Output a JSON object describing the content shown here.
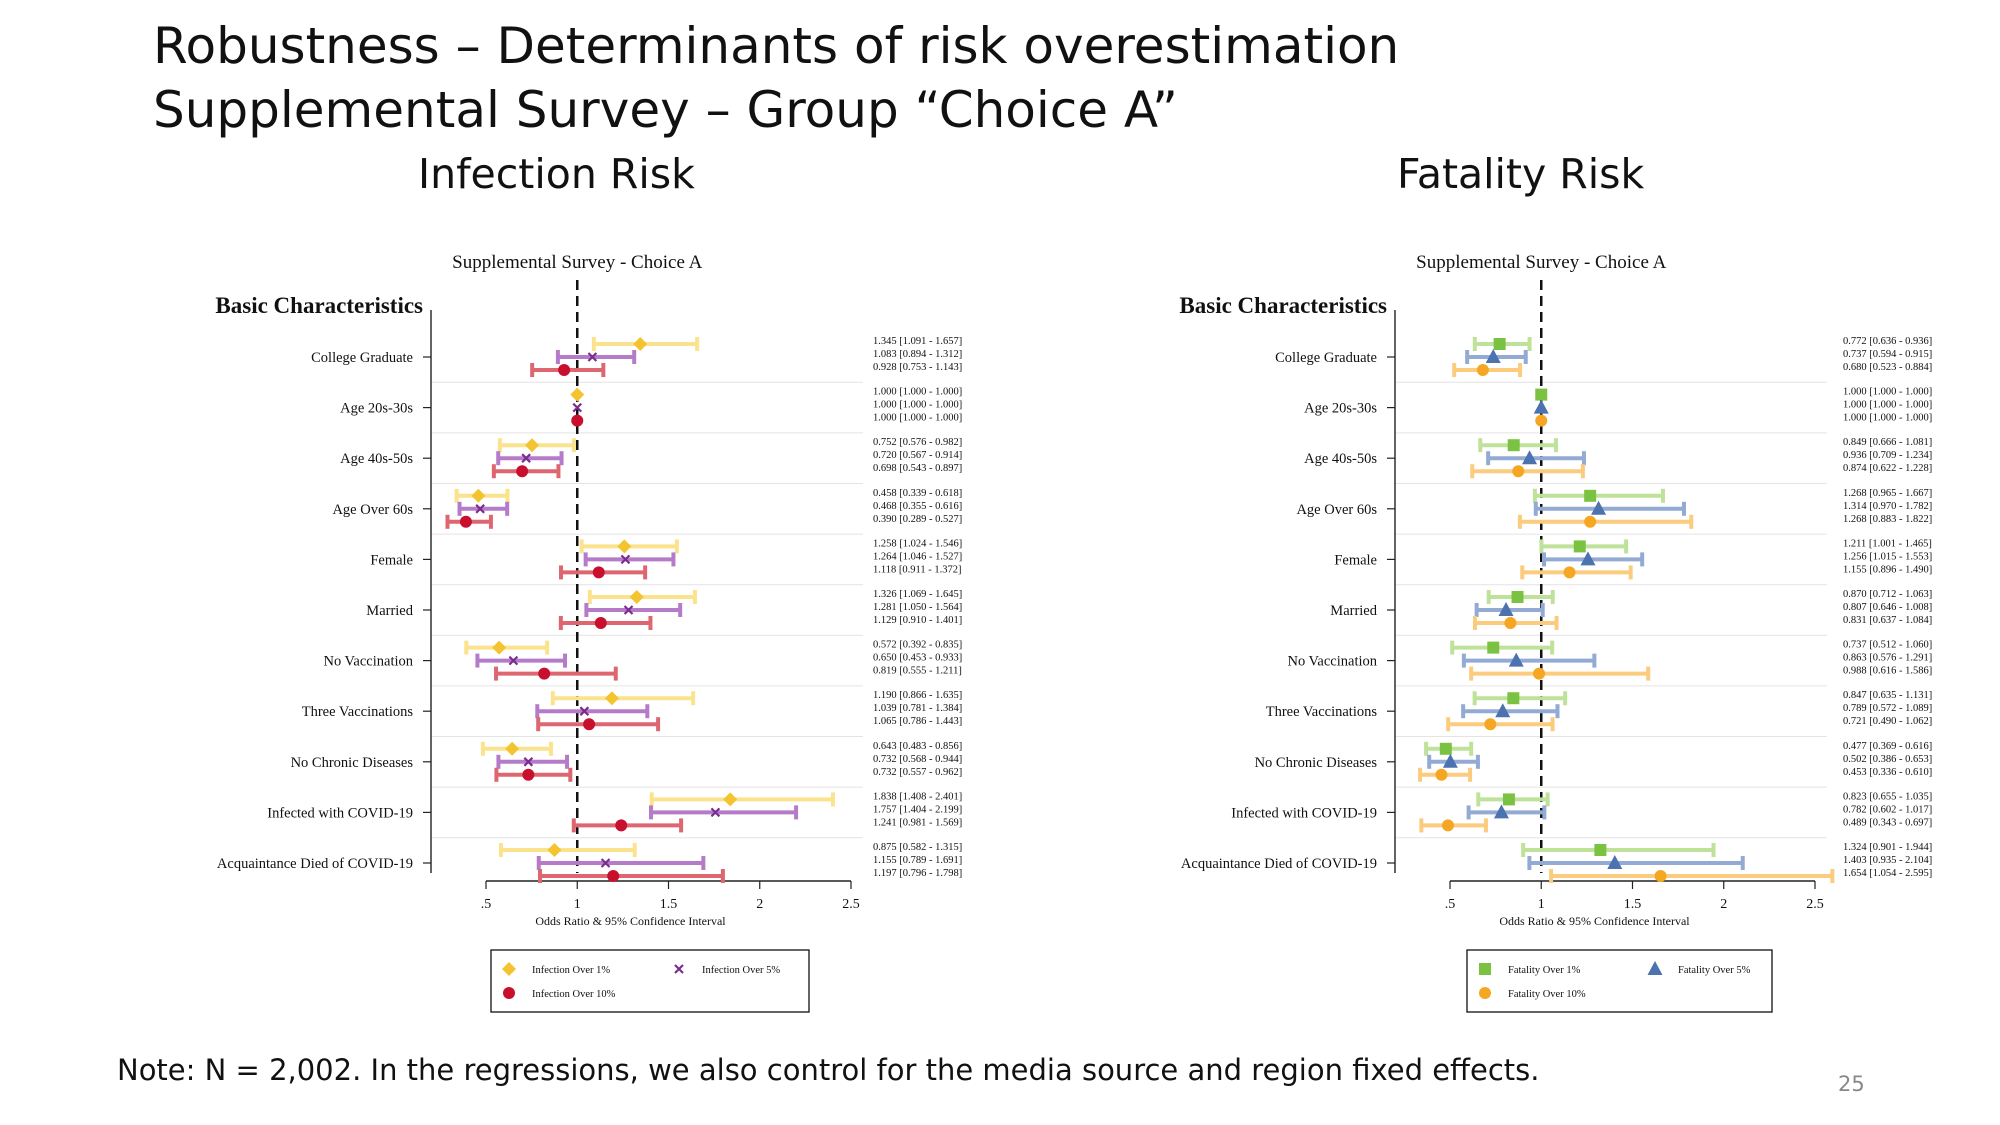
{
  "slide": {
    "title_line1": "Robustness – Determinants of risk overestimation",
    "title_line2": "Supplemental Survey – Group “Choice A”",
    "note": "Note: N = 2,002. In the regressions, we also control for the media source and region fixed effects.",
    "page_number": "25"
  },
  "panels": {
    "infection_title": "Infection Risk",
    "fatality_title": "Fatality Risk"
  },
  "chart_data": [
    {
      "type": "scatter",
      "subtitle": "Supplemental Survey - Choice A",
      "section_label": "Basic Characteristics",
      "xlabel": "Odds Ratio & 95% Confidence Interval",
      "xlim": [
        0.25,
        2.55
      ],
      "xticks": [
        0.5,
        1,
        1.5,
        2,
        2.5
      ],
      "xtick_labels": [
        ".5",
        "1",
        "1.5",
        "2",
        "2.5"
      ],
      "reference_line": 1,
      "categories": [
        "College Graduate",
        "Age 20s-30s",
        "Age 40s-50s",
        "Age Over 60s",
        "Female",
        "Married",
        "No Vaccination",
        "Three Vaccinations",
        "No Chronic Diseases",
        "Infected with COVID-19",
        "Acquaintance Died of COVID-19"
      ],
      "series": [
        {
          "name": "Infection Over 1%",
          "marker": "diamond",
          "color": "#F4C430",
          "ci_color": "#FBE38E",
          "values": [
            1.345,
            1.0,
            0.752,
            0.458,
            1.258,
            1.326,
            0.572,
            1.19,
            0.643,
            1.838,
            0.875
          ],
          "lower": [
            1.091,
            1.0,
            0.576,
            0.339,
            1.024,
            1.069,
            0.392,
            0.866,
            0.483,
            1.408,
            0.582
          ],
          "upper": [
            1.657,
            1.0,
            0.982,
            0.618,
            1.546,
            1.645,
            0.835,
            1.635,
            0.856,
            2.401,
            1.315
          ]
        },
        {
          "name": "Infection Over 5%",
          "marker": "x",
          "color": "#7B2D8E",
          "ci_color": "#B57BC9",
          "values": [
            1.083,
            1.0,
            0.72,
            0.468,
            1.264,
            1.281,
            0.65,
            1.039,
            0.732,
            1.757,
            1.155
          ],
          "lower": [
            0.894,
            1.0,
            0.567,
            0.355,
            1.046,
            1.05,
            0.453,
            0.781,
            0.568,
            1.404,
            0.789
          ],
          "upper": [
            1.312,
            1.0,
            0.914,
            0.616,
            1.527,
            1.564,
            0.933,
            1.384,
            0.944,
            2.199,
            1.691
          ]
        },
        {
          "name": "Infection Over 10%",
          "marker": "circle",
          "color": "#C8102E",
          "ci_color": "#DD6670",
          "values": [
            0.928,
            1.0,
            0.698,
            0.39,
            1.118,
            1.129,
            0.819,
            1.065,
            0.732,
            1.241,
            1.197
          ],
          "lower": [
            0.753,
            1.0,
            0.543,
            0.289,
            0.911,
            0.91,
            0.555,
            0.786,
            0.557,
            0.981,
            0.796
          ],
          "upper": [
            1.143,
            1.0,
            0.897,
            0.527,
            1.372,
            1.401,
            1.211,
            1.443,
            0.962,
            1.569,
            1.798
          ]
        }
      ],
      "annotations": [
        [
          "1.345 [1.091 - 1.657]",
          "1.083 [0.894 - 1.312]",
          "0.928 [0.753 - 1.143]"
        ],
        [
          "1.000 [1.000 - 1.000]",
          "1.000 [1.000 - 1.000]",
          "1.000 [1.000 - 1.000]"
        ],
        [
          "0.752 [0.576 - 0.982]",
          "0.720 [0.567 - 0.914]",
          "0.698 [0.543 - 0.897]"
        ],
        [
          "0.458 [0.339 - 0.618]",
          "0.468 [0.355 - 0.616]",
          "0.390 [0.289 - 0.527]"
        ],
        [
          "1.258 [1.024 - 1.546]",
          "1.264 [1.046 - 1.527]",
          "1.118 [0.911 - 1.372]"
        ],
        [
          "1.326 [1.069 - 1.645]",
          "1.281 [1.050 - 1.564]",
          "1.129 [0.910 - 1.401]"
        ],
        [
          "0.572 [0.392 - 0.835]",
          "0.650 [0.453 - 0.933]",
          "0.819 [0.555 - 1.211]"
        ],
        [
          "1.190 [0.866 - 1.635]",
          "1.039 [0.781 - 1.384]",
          "1.065 [0.786 - 1.443]"
        ],
        [
          "0.643 [0.483 - 0.856]",
          "0.732 [0.568 - 0.944]",
          "0.732 [0.557 - 0.962]"
        ],
        [
          "1.838 [1.408 - 2.401]",
          "1.757 [1.404 - 2.199]",
          "1.241 [0.981 - 1.569]"
        ],
        [
          "0.875 [0.582 - 1.315]",
          "1.155 [0.789 - 1.691]",
          "1.197 [0.796 - 1.798]"
        ]
      ]
    },
    {
      "type": "scatter",
      "subtitle": "Supplemental Survey - Choice A",
      "section_label": "Basic Characteristics",
      "xlabel": "Odds Ratio & 95% Confidence Interval",
      "xlim": [
        0.25,
        2.55
      ],
      "xticks": [
        0.5,
        1,
        1.5,
        2,
        2.5
      ],
      "xtick_labels": [
        ".5",
        "1",
        "1.5",
        "2",
        "2.5"
      ],
      "reference_line": 1,
      "categories": [
        "College Graduate",
        "Age 20s-30s",
        "Age 40s-50s",
        "Age Over 60s",
        "Female",
        "Married",
        "No Vaccination",
        "Three Vaccinations",
        "No Chronic Diseases",
        "Infected with COVID-19",
        "Acquaintance Died of COVID-19"
      ],
      "series": [
        {
          "name": "Fatality Over 1%",
          "marker": "square",
          "color": "#7CC242",
          "ci_color": "#BFE29A",
          "values": [
            0.772,
            1.0,
            0.849,
            1.268,
            1.211,
            0.87,
            0.737,
            0.847,
            0.477,
            0.823,
            1.324
          ],
          "lower": [
            0.636,
            1.0,
            0.666,
            0.965,
            1.001,
            0.712,
            0.512,
            0.635,
            0.369,
            0.655,
            0.901
          ],
          "upper": [
            0.936,
            1.0,
            1.081,
            1.667,
            1.465,
            1.063,
            1.06,
            1.131,
            0.616,
            1.035,
            1.944
          ]
        },
        {
          "name": "Fatality Over 5%",
          "marker": "triangle",
          "color": "#4C72B0",
          "ci_color": "#93AAD4",
          "values": [
            0.737,
            1.0,
            0.936,
            1.314,
            1.256,
            0.807,
            0.863,
            0.789,
            0.502,
            0.782,
            1.403
          ],
          "lower": [
            0.594,
            1.0,
            0.709,
            0.97,
            1.015,
            0.646,
            0.576,
            0.572,
            0.386,
            0.602,
            0.935
          ],
          "upper": [
            0.915,
            1.0,
            1.234,
            1.782,
            1.553,
            1.008,
            1.291,
            1.089,
            0.653,
            1.017,
            2.104
          ]
        },
        {
          "name": "Fatality Over 10%",
          "marker": "circle",
          "color": "#F5A623",
          "ci_color": "#FBCB7E",
          "values": [
            0.68,
            1.0,
            0.874,
            1.268,
            1.155,
            0.831,
            0.988,
            0.721,
            0.453,
            0.489,
            1.654
          ],
          "lower": [
            0.523,
            1.0,
            0.622,
            0.883,
            0.896,
            0.637,
            0.616,
            0.49,
            0.336,
            0.343,
            1.054
          ],
          "upper": [
            0.884,
            1.0,
            1.228,
            1.822,
            1.49,
            1.084,
            1.586,
            1.062,
            0.61,
            0.697,
            2.595
          ]
        }
      ],
      "annotations": [
        [
          "0.772 [0.636 - 0.936]",
          "0.737 [0.594 - 0.915]",
          "0.680 [0.523 - 0.884]"
        ],
        [
          "1.000 [1.000 - 1.000]",
          "1.000 [1.000 - 1.000]",
          "1.000 [1.000 - 1.000]"
        ],
        [
          "0.849 [0.666 - 1.081]",
          "0.936 [0.709 - 1.234]",
          "0.874 [0.622 - 1.228]"
        ],
        [
          "1.268 [0.965 - 1.667]",
          "1.314 [0.970 - 1.782]",
          "1.268 [0.883 - 1.822]"
        ],
        [
          "1.211 [1.001 - 1.465]",
          "1.256 [1.015 - 1.553]",
          "1.155 [0.896 - 1.490]"
        ],
        [
          "0.870 [0.712 - 1.063]",
          "0.807 [0.646 - 1.008]",
          "0.831 [0.637 - 1.084]"
        ],
        [
          "0.737 [0.512 - 1.060]",
          "0.863 [0.576 - 1.291]",
          "0.988 [0.616 - 1.586]"
        ],
        [
          "0.847 [0.635 - 1.131]",
          "0.789 [0.572 - 1.089]",
          "0.721 [0.490 - 1.062]"
        ],
        [
          "0.477 [0.369 - 0.616]",
          "0.502 [0.386 - 0.653]",
          "0.453 [0.336 - 0.610]"
        ],
        [
          "0.823 [0.655 - 1.035]",
          "0.782 [0.602 - 1.017]",
          "0.489 [0.343 - 0.697]"
        ],
        [
          "1.324 [0.901 - 1.944]",
          "1.403 [0.935 - 2.104]",
          "1.654 [1.054 - 2.595]"
        ]
      ]
    }
  ]
}
